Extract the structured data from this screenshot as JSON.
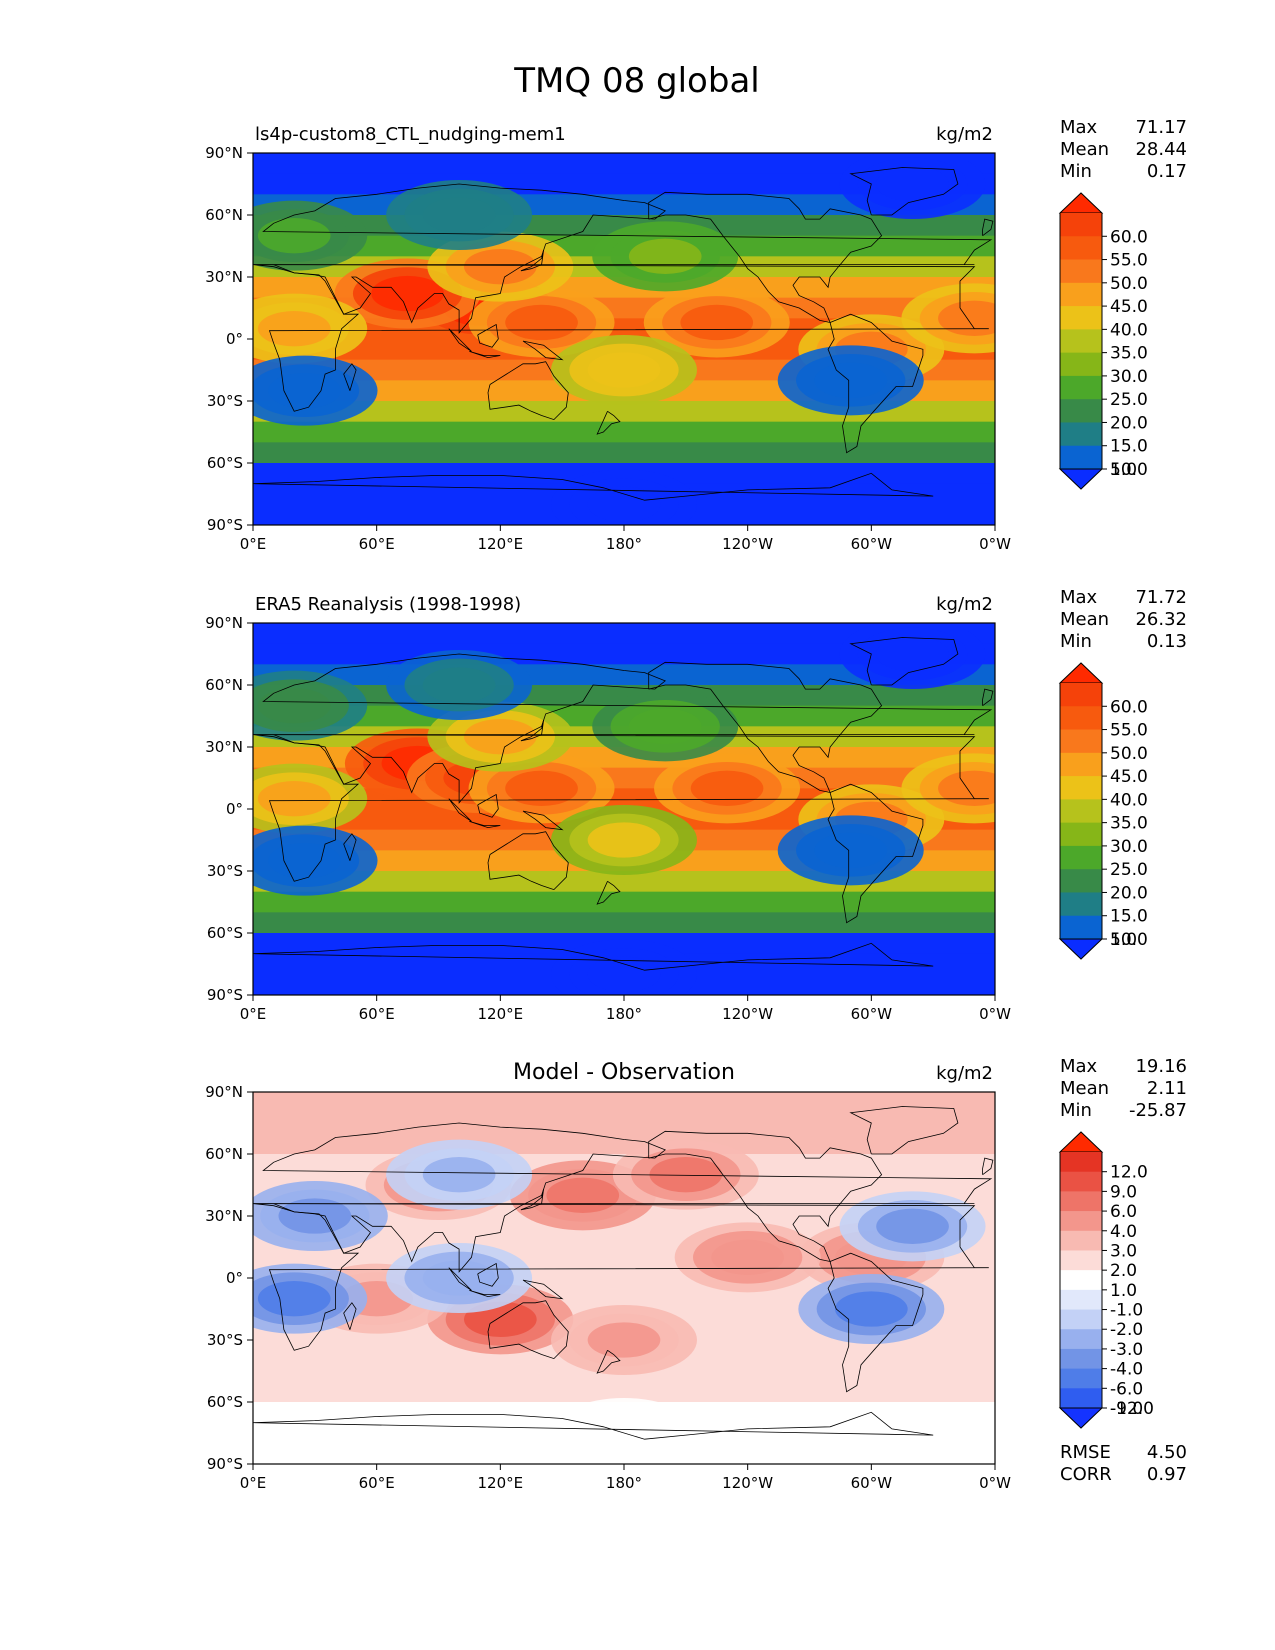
{
  "figure": {
    "title": "TMQ 08 global"
  },
  "colors": {
    "tmq": [
      "#0a2dff",
      "#0a64d2",
      "#1f7e86",
      "#388a48",
      "#4ca82a",
      "#86b618",
      "#b6c21c",
      "#ecc218",
      "#f9a01c",
      "#f9781c",
      "#f75a0e",
      "#f5420a",
      "#ff2a00"
    ],
    "diff": [
      "#1433ff",
      "#2f5df0",
      "#4f7de8",
      "#7294e6",
      "#98b0ee",
      "#c3d1f6",
      "#e1e8fb",
      "#ffffff",
      "#fcdcd8",
      "#f8bab2",
      "#f3968c",
      "#ee7468",
      "#ea5244",
      "#e53424",
      "#ff2a00"
    ]
  },
  "chart_data": [
    {
      "type": "heatmap",
      "id": "model",
      "title_left": "ls4p-custom8_CTL_nudging-mem1",
      "title_center": "",
      "units": "kg/m2",
      "xticks": [
        "0°E",
        "60°E",
        "120°E",
        "180°",
        "120°W",
        "60°W",
        "0°W"
      ],
      "yticks": [
        "90°N",
        "60°N",
        "30°N",
        "0°",
        "30°S",
        "60°S",
        "90°S"
      ],
      "xlim": [
        0,
        360
      ],
      "ylim": [
        -90,
        90
      ],
      "stats": [
        {
          "label": "Max",
          "value": "71.17"
        },
        {
          "label": "Mean",
          "value": "28.44"
        },
        {
          "label": "Min",
          "value": "0.17"
        }
      ],
      "colorbar_levels": [
        "60.0",
        "55.0",
        "50.0",
        "45.0",
        "40.0",
        "35.0",
        "30.0",
        "25.0",
        "20.0",
        "15.0",
        "10.0",
        "5.0"
      ],
      "features": [
        {
          "lon": 110,
          "lat": 15,
          "value": 66
        },
        {
          "lon": 75,
          "lat": 22,
          "value": 64
        },
        {
          "lon": 140,
          "lat": 8,
          "value": 56
        },
        {
          "lon": 225,
          "lat": 8,
          "value": 52
        },
        {
          "lon": 300,
          "lat": -5,
          "value": 50
        },
        {
          "lon": 350,
          "lat": 10,
          "value": 48
        },
        {
          "lon": 20,
          "lat": 5,
          "value": 45
        },
        {
          "lon": 120,
          "lat": 35,
          "value": 48
        },
        {
          "lon": 180,
          "lat": -15,
          "value": 40
        },
        {
          "lon": 200,
          "lat": 40,
          "value": 28
        },
        {
          "lon": 20,
          "lat": 50,
          "value": 22
        },
        {
          "lon": 100,
          "lat": 60,
          "value": 14
        },
        {
          "lon": 25,
          "lat": -25,
          "value": 8
        },
        {
          "lon": 320,
          "lat": 75,
          "value": 4
        },
        {
          "lon": 180,
          "lat": -80,
          "value": 2
        },
        {
          "lon": 290,
          "lat": -20,
          "value": 9
        }
      ],
      "rmse": null,
      "corr": null
    },
    {
      "type": "heatmap",
      "id": "obs",
      "title_left": "ERA5 Reanalysis (1998-1998)",
      "title_center": "",
      "units": "kg/m2",
      "xticks": [
        "0°E",
        "60°E",
        "120°E",
        "180°",
        "120°W",
        "60°W",
        "0°W"
      ],
      "yticks": [
        "90°N",
        "60°N",
        "30°N",
        "0°",
        "30°S",
        "60°S",
        "90°S"
      ],
      "xlim": [
        0,
        360
      ],
      "ylim": [
        -90,
        90
      ],
      "stats": [
        {
          "label": "Max",
          "value": "71.72"
        },
        {
          "label": "Mean",
          "value": "26.32"
        },
        {
          "label": "Min",
          "value": "0.13"
        }
      ],
      "colorbar_levels": [
        "60.0",
        "55.0",
        "50.0",
        "45.0",
        "40.0",
        "35.0",
        "30.0",
        "25.0",
        "20.0",
        "15.0",
        "10.0",
        "5.0"
      ],
      "features": [
        {
          "lon": 80,
          "lat": 22,
          "value": 66
        },
        {
          "lon": 110,
          "lat": 15,
          "value": 60
        },
        {
          "lon": 140,
          "lat": 10,
          "value": 54
        },
        {
          "lon": 230,
          "lat": 10,
          "value": 52
        },
        {
          "lon": 300,
          "lat": -5,
          "value": 50
        },
        {
          "lon": 350,
          "lat": 10,
          "value": 46
        },
        {
          "lon": 20,
          "lat": 5,
          "value": 42
        },
        {
          "lon": 120,
          "lat": 35,
          "value": 44
        },
        {
          "lon": 180,
          "lat": -15,
          "value": 36
        },
        {
          "lon": 200,
          "lat": 40,
          "value": 24
        },
        {
          "lon": 20,
          "lat": 50,
          "value": 18
        },
        {
          "lon": 100,
          "lat": 60,
          "value": 12
        },
        {
          "lon": 25,
          "lat": -25,
          "value": 8
        },
        {
          "lon": 320,
          "lat": 75,
          "value": 4
        },
        {
          "lon": 180,
          "lat": -80,
          "value": 2
        },
        {
          "lon": 290,
          "lat": -20,
          "value": 8
        }
      ],
      "rmse": null,
      "corr": null
    },
    {
      "type": "heatmap",
      "id": "diff",
      "title_left": "",
      "title_center": "Model - Observation",
      "units": "kg/m2",
      "xticks": [
        "0°E",
        "60°E",
        "120°E",
        "180°",
        "120°W",
        "60°W",
        "0°W"
      ],
      "yticks": [
        "90°N",
        "60°N",
        "30°N",
        "0°",
        "30°S",
        "60°S",
        "90°S"
      ],
      "xlim": [
        0,
        360
      ],
      "ylim": [
        -90,
        90
      ],
      "stats": [
        {
          "label": "Max",
          "value": "19.16"
        },
        {
          "label": "Mean",
          "value": "2.11"
        },
        {
          "label": "Min",
          "value": "-25.87"
        }
      ],
      "colorbar_levels": [
        "12.0",
        "9.0",
        "6.0",
        "4.0",
        "3.0",
        "2.0",
        "1.0",
        "-1.0",
        "-2.0",
        "-3.0",
        "-4.0",
        "-6.0",
        "-9.0",
        "-12.0"
      ],
      "features": [
        {
          "lon": 160,
          "lat": 40,
          "value": 8
        },
        {
          "lon": 120,
          "lat": -20,
          "value": 10
        },
        {
          "lon": 90,
          "lat": 45,
          "value": 6
        },
        {
          "lon": 210,
          "lat": 50,
          "value": 7
        },
        {
          "lon": 300,
          "lat": 10,
          "value": 6
        },
        {
          "lon": 60,
          "lat": -10,
          "value": 5
        },
        {
          "lon": 180,
          "lat": -30,
          "value": 5
        },
        {
          "lon": 30,
          "lat": 30,
          "value": -8
        },
        {
          "lon": 20,
          "lat": -10,
          "value": -9
        },
        {
          "lon": 320,
          "lat": 25,
          "value": -7
        },
        {
          "lon": 100,
          "lat": 0,
          "value": -6
        },
        {
          "lon": 300,
          "lat": -15,
          "value": -9
        },
        {
          "lon": 100,
          "lat": 50,
          "value": -5
        },
        {
          "lon": 240,
          "lat": 10,
          "value": 6
        },
        {
          "lon": 180,
          "lat": -75,
          "value": 0
        }
      ],
      "rmse": {
        "label": "RMSE",
        "value": "4.50"
      },
      "corr": {
        "label": "CORR",
        "value": "0.97"
      }
    }
  ]
}
